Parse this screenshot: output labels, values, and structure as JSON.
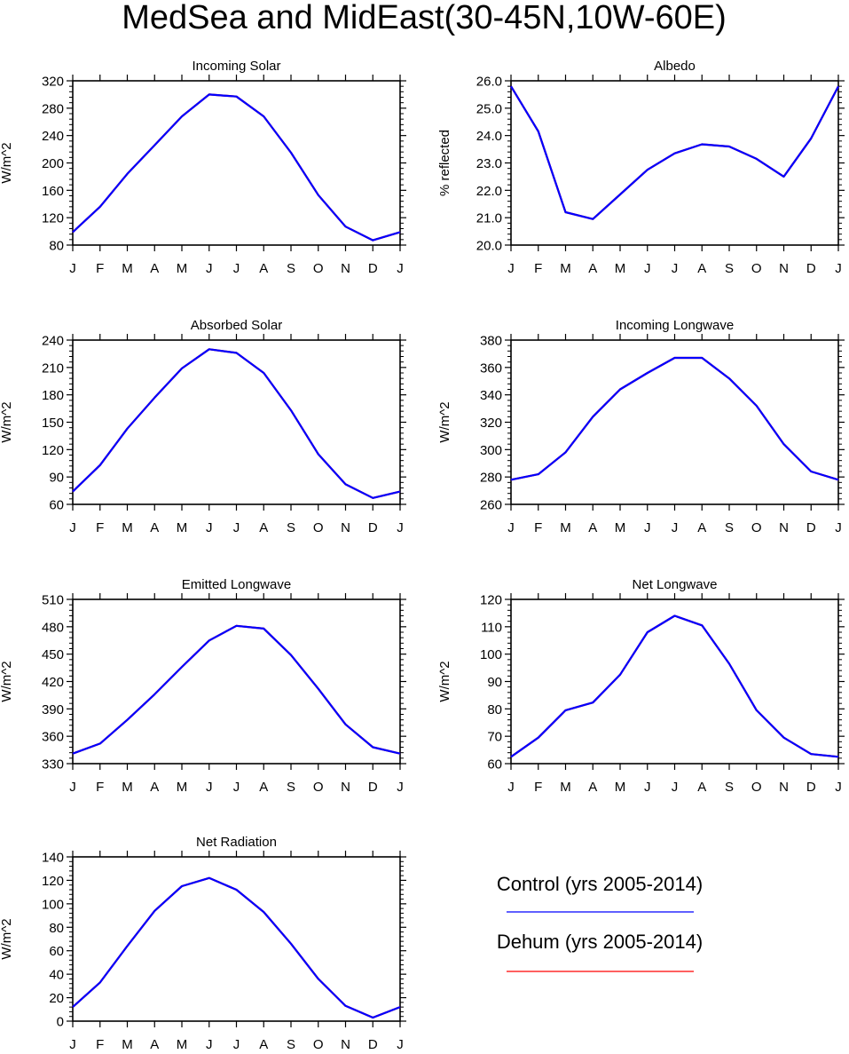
{
  "title": "MedSea and MidEast(30-45N,10W-60E)",
  "months": [
    "J",
    "F",
    "M",
    "A",
    "M",
    "J",
    "J",
    "A",
    "S",
    "O",
    "N",
    "D",
    "J"
  ],
  "colors": {
    "control": "#0000ff",
    "dehum": "#ff0000",
    "axis": "#000000"
  },
  "legend": [
    {
      "label": "Control (yrs 2005-2014)",
      "color": "#0000ff"
    },
    {
      "label": "Dehum (yrs 2005-2014)",
      "color": "#ff0000"
    }
  ],
  "chart_data": [
    {
      "type": "line",
      "title": "Incoming Solar",
      "ylabel": "W/m^2",
      "ylim": [
        80,
        320
      ],
      "yticks": [
        "80",
        "120",
        "160",
        "200",
        "240",
        "280",
        "320"
      ],
      "categories": [
        "J",
        "F",
        "M",
        "A",
        "M",
        "J",
        "J",
        "A",
        "S",
        "O",
        "N",
        "D",
        "J"
      ],
      "series": [
        {
          "name": "Control (yrs 2005-2014)",
          "values": [
            99,
            136,
            184,
            226,
            268,
            300,
            297,
            268,
            215,
            153,
            107,
            87,
            99
          ]
        },
        {
          "name": "Dehum (yrs 2005-2014)",
          "values": [
            99,
            136,
            184,
            226,
            268,
            300,
            297,
            268,
            215,
            153,
            107,
            87,
            99
          ]
        }
      ]
    },
    {
      "type": "line",
      "title": "Albedo",
      "ylabel": "% reflected",
      "ylim": [
        20.0,
        26.0
      ],
      "yticks": [
        "20.0",
        "21.0",
        "22.0",
        "23.0",
        "24.0",
        "25.0",
        "26.0"
      ],
      "categories": [
        "J",
        "F",
        "M",
        "A",
        "M",
        "J",
        "J",
        "A",
        "S",
        "O",
        "N",
        "D",
        "J"
      ],
      "series": [
        {
          "name": "Control (yrs 2005-2014)",
          "values": [
            25.8,
            24.15,
            21.2,
            20.95,
            21.85,
            22.75,
            23.35,
            23.68,
            23.6,
            23.15,
            22.5,
            23.9,
            25.8
          ]
        },
        {
          "name": "Dehum (yrs 2005-2014)",
          "values": [
            25.8,
            24.15,
            21.2,
            20.95,
            21.85,
            22.75,
            23.35,
            23.68,
            23.6,
            23.15,
            22.5,
            23.9,
            25.8
          ]
        }
      ]
    },
    {
      "type": "line",
      "title": "Absorbed Solar",
      "ylabel": "W/m^2",
      "ylim": [
        60,
        240
      ],
      "yticks": [
        "60",
        "90",
        "120",
        "150",
        "180",
        "210",
        "240"
      ],
      "categories": [
        "J",
        "F",
        "M",
        "A",
        "M",
        "J",
        "J",
        "A",
        "S",
        "O",
        "N",
        "D",
        "J"
      ],
      "series": [
        {
          "name": "Control (yrs 2005-2014)",
          "values": [
            74,
            103,
            143,
            177,
            209,
            230,
            226,
            204,
            163,
            115,
            82,
            67,
            74
          ]
        },
        {
          "name": "Dehum (yrs 2005-2014)",
          "values": [
            74,
            103,
            143,
            177,
            209,
            230,
            226,
            204,
            163,
            115,
            82,
            67,
            74
          ]
        }
      ]
    },
    {
      "type": "line",
      "title": "Incoming Longwave",
      "ylabel": "W/m^2",
      "ylim": [
        260,
        380
      ],
      "yticks": [
        "260",
        "280",
        "300",
        "320",
        "340",
        "360",
        "380"
      ],
      "categories": [
        "J",
        "F",
        "M",
        "A",
        "M",
        "J",
        "J",
        "A",
        "S",
        "O",
        "N",
        "D",
        "J"
      ],
      "series": [
        {
          "name": "Control (yrs 2005-2014)",
          "values": [
            278,
            282,
            298,
            324,
            344,
            356,
            367,
            367,
            352,
            332,
            304,
            284,
            278
          ]
        },
        {
          "name": "Dehum (yrs 2005-2014)",
          "values": [
            278,
            282,
            298,
            324,
            344,
            356,
            367,
            367,
            352,
            332,
            304,
            284,
            278
          ]
        }
      ]
    },
    {
      "type": "line",
      "title": "Emitted Longwave",
      "ylabel": "W/m^2",
      "ylim": [
        330,
        510
      ],
      "yticks": [
        "330",
        "360",
        "390",
        "420",
        "450",
        "480",
        "510"
      ],
      "categories": [
        "J",
        "F",
        "M",
        "A",
        "M",
        "J",
        "J",
        "A",
        "S",
        "O",
        "N",
        "D",
        "J"
      ],
      "series": [
        {
          "name": "Control (yrs 2005-2014)",
          "values": [
            341,
            352,
            378,
            406,
            436,
            465,
            481,
            478,
            449,
            412,
            373,
            348,
            341
          ]
        },
        {
          "name": "Dehum (yrs 2005-2014)",
          "values": [
            341,
            352,
            378,
            406,
            436,
            465,
            481,
            478,
            449,
            412,
            373,
            348,
            341
          ]
        }
      ]
    },
    {
      "type": "line",
      "title": "Net Longwave",
      "ylabel": "W/m^2",
      "ylim": [
        60,
        120
      ],
      "yticks": [
        "60",
        "70",
        "80",
        "90",
        "100",
        "110",
        "120"
      ],
      "categories": [
        "J",
        "F",
        "M",
        "A",
        "M",
        "J",
        "J",
        "A",
        "S",
        "O",
        "N",
        "D",
        "J"
      ],
      "series": [
        {
          "name": "Control (yrs 2005-2014)",
          "values": [
            62.5,
            69.5,
            79.5,
            82.3,
            92.5,
            108,
            114,
            110.5,
            96.5,
            79.5,
            69.5,
            63.5,
            62.5
          ]
        },
        {
          "name": "Dehum (yrs 2005-2014)",
          "values": [
            62.5,
            69.5,
            79.5,
            82.3,
            92.5,
            108,
            114,
            110.5,
            96.5,
            79.5,
            69.5,
            63.5,
            62.5
          ]
        }
      ]
    },
    {
      "type": "line",
      "title": "Net Radiation",
      "ylabel": "W/m^2",
      "ylim": [
        0,
        140
      ],
      "yticks": [
        "0",
        "20",
        "40",
        "60",
        "80",
        "100",
        "120",
        "140"
      ],
      "categories": [
        "J",
        "F",
        "M",
        "A",
        "M",
        "J",
        "J",
        "A",
        "S",
        "O",
        "N",
        "D",
        "J"
      ],
      "series": [
        {
          "name": "Control (yrs 2005-2014)",
          "values": [
            12,
            33,
            64,
            94,
            115,
            122,
            112,
            93,
            66,
            36,
            13,
            3,
            12
          ]
        },
        {
          "name": "Dehum (yrs 2005-2014)",
          "values": [
            12,
            33,
            64,
            94,
            115,
            122,
            112,
            93,
            66,
            36,
            13,
            3,
            12
          ]
        }
      ]
    }
  ]
}
